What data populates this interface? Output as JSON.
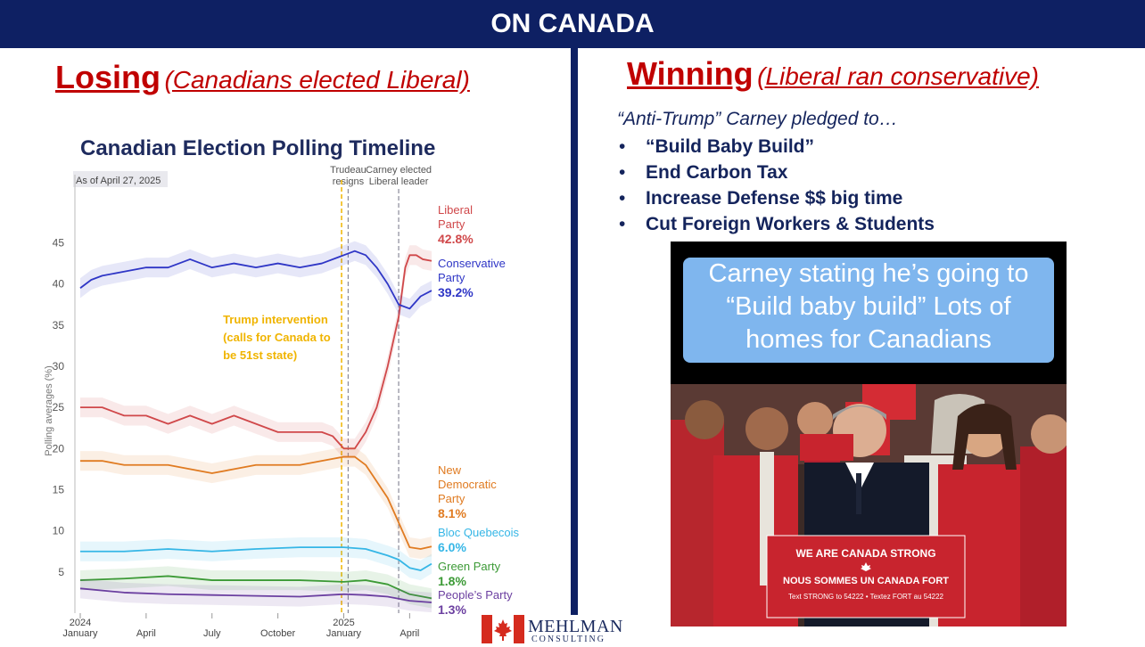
{
  "banner": {
    "title": "ON CANADA"
  },
  "left": {
    "heading_main": "Losing",
    "heading_sub": "(Canadians elected Liberal)"
  },
  "right": {
    "heading_main": "Winning",
    "heading_sub": "(Liberal ran conservative)",
    "intro": "“Anti-Trump” Carney pledged to…",
    "bullet_glyph": "•",
    "pledges": [
      "“Build Baby Build”",
      "End Carbon Tax",
      "Increase Defense $$ big time",
      "Cut Foreign Workers & Students"
    ],
    "video": {
      "caption_lines": [
        "Carney stating he’s going to",
        "“Build baby build” Lots of",
        "homes for Canadians"
      ],
      "podium_line1": "WE ARE CANADA STRONG",
      "podium_line2": "NOUS SOMMES UN CANADA FORT",
      "podium_line3": "Text STRONG to 54222 • Textez FORT au 54222"
    }
  },
  "logo": {
    "name": "MEHLMAN",
    "sub": "CONSULTING"
  },
  "colors": {
    "banner": "#0e2063",
    "heading": "#c00000",
    "liberal": "#d0484a",
    "conservative": "#2f36c6",
    "ndp": "#e07b21",
    "bloc": "#35b6e6",
    "green": "#3c9a36",
    "ppc": "#6b3fa0",
    "trump_line": "#f0b400"
  },
  "chart_data": {
    "type": "line",
    "title": "Canadian Election Polling Timeline",
    "subtitle": "As of April 27, 2025",
    "ylabel": "Polling averages (%)",
    "xlabel": "",
    "ylim": [
      0,
      47
    ],
    "yticks": [
      5,
      10,
      15,
      20,
      25,
      30,
      35,
      40,
      45
    ],
    "xlim": [
      0,
      16
    ],
    "xticks": [
      {
        "x": 0,
        "line1": "2024",
        "line2": "January"
      },
      {
        "x": 3,
        "line1": "",
        "line2": "April"
      },
      {
        "x": 6,
        "line1": "",
        "line2": "July"
      },
      {
        "x": 9,
        "line1": "",
        "line2": "October"
      },
      {
        "x": 12,
        "line1": "2025",
        "line2": "January"
      },
      {
        "x": 15,
        "line1": "",
        "line2": "April"
      }
    ],
    "events": [
      {
        "x": 12.2,
        "label_lines": [
          "Trudeau",
          "resigns"
        ],
        "style": "gray"
      },
      {
        "x": 14.5,
        "label_lines": [
          "Carney elected",
          "Liberal leader"
        ],
        "style": "gray"
      },
      {
        "x": 11.9,
        "label_lines": [],
        "style": "trump"
      }
    ],
    "annotation": {
      "lines": [
        "Trump intervention",
        "(calls for Canada to",
        "be 51st state)"
      ],
      "x": 6.5,
      "y": 35.2
    },
    "series": [
      {
        "name_lines": [
          "Liberal",
          "Party"
        ],
        "value_label": "42.8%",
        "color_key": "liberal",
        "points": [
          [
            0,
            25
          ],
          [
            1,
            25
          ],
          [
            2,
            24
          ],
          [
            3,
            24
          ],
          [
            4,
            23
          ],
          [
            5,
            24
          ],
          [
            6,
            23
          ],
          [
            7,
            24
          ],
          [
            8,
            23
          ],
          [
            9,
            22
          ],
          [
            10,
            22
          ],
          [
            11,
            22
          ],
          [
            11.5,
            21.5
          ],
          [
            12,
            20
          ],
          [
            12.5,
            20
          ],
          [
            13,
            22
          ],
          [
            13.5,
            25
          ],
          [
            14,
            30
          ],
          [
            14.5,
            36
          ],
          [
            14.8,
            42
          ],
          [
            15,
            43.5
          ],
          [
            15.3,
            43.5
          ],
          [
            15.6,
            43
          ],
          [
            16,
            42.8
          ]
        ]
      },
      {
        "name_lines": [
          "Conservative",
          "Party"
        ],
        "value_label": "39.2%",
        "color_key": "conservative",
        "points": [
          [
            0,
            39.5
          ],
          [
            0.5,
            40.5
          ],
          [
            1,
            41
          ],
          [
            2,
            41.5
          ],
          [
            3,
            42
          ],
          [
            4,
            42
          ],
          [
            5,
            43
          ],
          [
            6,
            42
          ],
          [
            7,
            42.5
          ],
          [
            8,
            42
          ],
          [
            9,
            42.5
          ],
          [
            10,
            42
          ],
          [
            11,
            42.5
          ],
          [
            12,
            43.5
          ],
          [
            12.5,
            44
          ],
          [
            13,
            43.5
          ],
          [
            13.5,
            42
          ],
          [
            14,
            40
          ],
          [
            14.5,
            37.5
          ],
          [
            15,
            37
          ],
          [
            15.5,
            38.5
          ],
          [
            16,
            39.2
          ]
        ]
      },
      {
        "name_lines": [
          "New",
          "Democratic",
          "Party"
        ],
        "value_label": "8.1%",
        "color_key": "ndp",
        "points": [
          [
            0,
            18.5
          ],
          [
            1,
            18.5
          ],
          [
            2,
            18
          ],
          [
            3,
            18
          ],
          [
            4,
            18
          ],
          [
            5,
            17.5
          ],
          [
            6,
            17
          ],
          [
            7,
            17.5
          ],
          [
            8,
            18
          ],
          [
            9,
            18
          ],
          [
            10,
            18
          ],
          [
            11,
            18.5
          ],
          [
            12,
            19
          ],
          [
            12.5,
            19
          ],
          [
            13,
            18
          ],
          [
            13.5,
            16
          ],
          [
            14,
            14
          ],
          [
            14.5,
            11
          ],
          [
            15,
            8
          ],
          [
            15.5,
            7.8
          ],
          [
            16,
            8.1
          ]
        ]
      },
      {
        "name_lines": [
          "Bloc Quebecois"
        ],
        "value_label": "6.0%",
        "color_key": "bloc",
        "points": [
          [
            0,
            7.5
          ],
          [
            2,
            7.5
          ],
          [
            4,
            7.8
          ],
          [
            6,
            7.5
          ],
          [
            8,
            7.8
          ],
          [
            10,
            8
          ],
          [
            12,
            8
          ],
          [
            13,
            7.8
          ],
          [
            14,
            7
          ],
          [
            14.5,
            6.5
          ],
          [
            15,
            5.5
          ],
          [
            15.5,
            5.2
          ],
          [
            16,
            6
          ]
        ]
      },
      {
        "name_lines": [
          "Green Party"
        ],
        "value_label": "1.8%",
        "color_key": "green",
        "points": [
          [
            0,
            4
          ],
          [
            2,
            4.2
          ],
          [
            4,
            4.5
          ],
          [
            6,
            4
          ],
          [
            8,
            4
          ],
          [
            10,
            4
          ],
          [
            12,
            3.8
          ],
          [
            13,
            4
          ],
          [
            14,
            3.5
          ],
          [
            15,
            2.3
          ],
          [
            16,
            1.8
          ]
        ]
      },
      {
        "name_lines": [
          "People’s Party"
        ],
        "value_label": "1.3%",
        "color_key": "ppc",
        "points": [
          [
            0,
            3
          ],
          [
            2,
            2.5
          ],
          [
            4,
            2.3
          ],
          [
            6,
            2.2
          ],
          [
            8,
            2.1
          ],
          [
            10,
            2
          ],
          [
            12,
            2.3
          ],
          [
            13,
            2.2
          ],
          [
            14,
            2
          ],
          [
            15,
            1.5
          ],
          [
            16,
            1.3
          ]
        ]
      }
    ]
  }
}
